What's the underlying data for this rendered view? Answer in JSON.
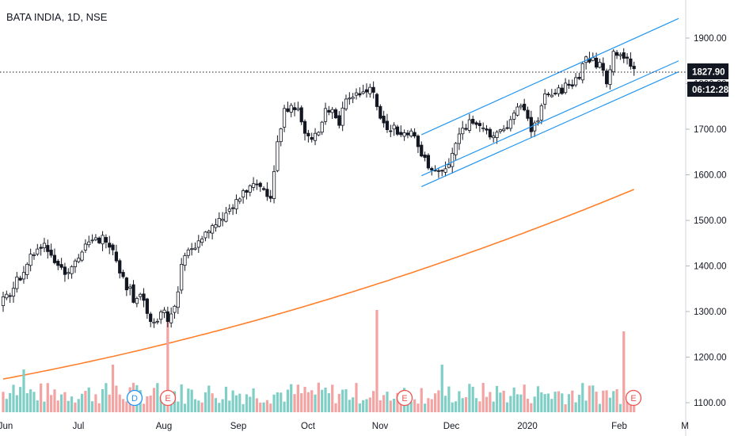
{
  "header": {
    "title": "BATA INDIA, 1D, NSE"
  },
  "price_tags": {
    "last_price": "1827.90",
    "countdown": "06:12:28"
  },
  "markers": [
    {
      "label": "D",
      "color": "#2196f3"
    },
    {
      "label": "E",
      "color": "#ef5350"
    },
    {
      "label": "E",
      "color": "#ef5350"
    },
    {
      "label": "E",
      "color": "#ef5350"
    }
  ],
  "colors": {
    "up": "#26a69a",
    "down": "#ef5350",
    "candle": "#131722",
    "ma": "#ff7f2a",
    "channel": "#2196f3",
    "vol_up": "#7fcfc6",
    "vol_down": "#f4a3a3"
  },
  "chart_data": {
    "type": "candlestick",
    "title": "BATA INDIA, 1D, NSE",
    "ylim": [
      1080,
      1960
    ],
    "y_ticks": [
      "1100.00",
      "1200.00",
      "1300.00",
      "1400.00",
      "1500.00",
      "1600.00",
      "1700.00",
      "1800.00",
      "1900.00"
    ],
    "x_ticks": [
      "Jun",
      "Jul",
      "Aug",
      "Sep",
      "Oct",
      "Nov",
      "Dec",
      "2020",
      "Feb",
      "M"
    ],
    "last_price": 1827.9,
    "price_path": [
      [
        0,
        1322
      ],
      [
        3,
        1350
      ],
      [
        6,
        1395
      ],
      [
        9,
        1430
      ],
      [
        12,
        1445
      ],
      [
        15,
        1415
      ],
      [
        18,
        1388
      ],
      [
        21,
        1410
      ],
      [
        24,
        1440
      ],
      [
        27,
        1455
      ],
      [
        30,
        1462
      ],
      [
        32,
        1440
      ],
      [
        35,
        1370
      ],
      [
        38,
        1330
      ],
      [
        40,
        1340
      ],
      [
        42,
        1300
      ],
      [
        44,
        1278
      ],
      [
        46,
        1300
      ],
      [
        48,
        1288
      ],
      [
        50,
        1305
      ],
      [
        52,
        1402
      ],
      [
        54,
        1432
      ],
      [
        56,
        1440
      ],
      [
        58,
        1468
      ],
      [
        60,
        1478
      ],
      [
        62,
        1485
      ],
      [
        64,
        1505
      ],
      [
        66,
        1520
      ],
      [
        68,
        1535
      ],
      [
        70,
        1560
      ],
      [
        72,
        1568
      ],
      [
        74,
        1578
      ],
      [
        76,
        1568
      ],
      [
        78,
        1555
      ],
      [
        80,
        1668
      ],
      [
        82,
        1735
      ],
      [
        84,
        1762
      ],
      [
        86,
        1738
      ],
      [
        88,
        1690
      ],
      [
        90,
        1672
      ],
      [
        92,
        1698
      ],
      [
        94,
        1745
      ],
      [
        96,
        1740
      ],
      [
        98,
        1712
      ],
      [
        100,
        1772
      ],
      [
        102,
        1780
      ],
      [
        104,
        1778
      ],
      [
        106,
        1792
      ],
      [
        108,
        1785
      ],
      [
        110,
        1720
      ],
      [
        112,
        1705
      ],
      [
        114,
        1703
      ],
      [
        116,
        1685
      ],
      [
        118,
        1695
      ],
      [
        120,
        1680
      ],
      [
        122,
        1640
      ],
      [
        124,
        1622
      ],
      [
        126,
        1608
      ],
      [
        128,
        1604
      ],
      [
        130,
        1620
      ],
      [
        132,
        1668
      ],
      [
        134,
        1700
      ],
      [
        136,
        1715
      ],
      [
        138,
        1720
      ],
      [
        140,
        1705
      ],
      [
        142,
        1672
      ],
      [
        144,
        1695
      ],
      [
        146,
        1700
      ],
      [
        148,
        1718
      ],
      [
        150,
        1738
      ],
      [
        152,
        1748
      ],
      [
        154,
        1705
      ],
      [
        156,
        1728
      ],
      [
        158,
        1768
      ],
      [
        160,
        1775
      ],
      [
        162,
        1780
      ],
      [
        164,
        1792
      ],
      [
        166,
        1798
      ],
      [
        168,
        1820
      ],
      [
        170,
        1858
      ],
      [
        172,
        1847
      ],
      [
        174,
        1842
      ],
      [
        176,
        1808
      ],
      [
        178,
        1868
      ],
      [
        180,
        1870
      ],
      [
        182,
        1845
      ],
      [
        184,
        1828
      ]
    ],
    "candle_count": 185,
    "moving_average": {
      "start": 1152,
      "end": 1568
    },
    "channel_lines": [
      {
        "x0": 122,
        "y0": 1688,
        "x1": 197,
        "y1": 1943
      },
      {
        "x0": 122,
        "y0": 1598,
        "x1": 197,
        "y1": 1850
      },
      {
        "x0": 122,
        "y0": 1574,
        "x1": 197,
        "y1": 1826
      }
    ],
    "volume_spikes": [
      {
        "i": 48,
        "h": 0.78
      },
      {
        "i": 109,
        "h": 0.86
      },
      {
        "i": 181,
        "h": 0.68
      },
      {
        "i": 6,
        "h": 0.36
      },
      {
        "i": 32,
        "h": 0.4
      },
      {
        "i": 128,
        "h": 0.4
      }
    ]
  }
}
